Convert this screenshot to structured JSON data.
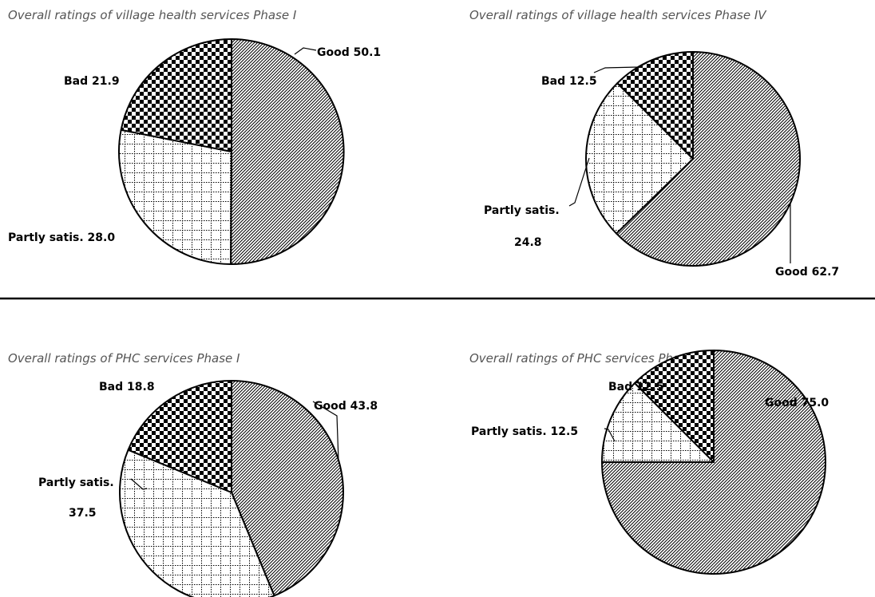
{
  "chart_data": [
    {
      "type": "pie",
      "title": "Overall ratings of village health services Phase I",
      "slices": [
        {
          "name": "Good",
          "value": 50.1,
          "pattern": "hatch",
          "labels": [
            "Good 50.1"
          ]
        },
        {
          "name": "Partly satis.",
          "value": 28.0,
          "pattern": "grid",
          "labels": [
            "Partly satis. 28.0"
          ]
        },
        {
          "name": "Bad",
          "value": 21.9,
          "pattern": "checker",
          "labels": [
            "Bad 21.9"
          ]
        }
      ]
    },
    {
      "type": "pie",
      "title": "Overall ratings of village health services Phase IV",
      "slices": [
        {
          "name": "Good",
          "value": 62.7,
          "pattern": "hatch",
          "labels": [
            "Good 62.7"
          ]
        },
        {
          "name": "Partly satis.",
          "value": 24.8,
          "pattern": "grid",
          "labels": [
            "Partly satis.",
            "24.8"
          ]
        },
        {
          "name": "Bad",
          "value": 12.5,
          "pattern": "checker",
          "labels": [
            "Bad 12.5"
          ]
        }
      ]
    },
    {
      "type": "pie",
      "title": "Overall ratings of PHC services Phase I",
      "slices": [
        {
          "name": "Good",
          "value": 43.8,
          "pattern": "hatch",
          "labels": [
            "Good 43.8"
          ]
        },
        {
          "name": "Partly satis.",
          "value": 37.5,
          "pattern": "grid",
          "labels": [
            "Partly satis.",
            "37.5"
          ]
        },
        {
          "name": "Bad",
          "value": 18.8,
          "pattern": "checker",
          "labels": [
            "Bad 18.8"
          ]
        }
      ]
    },
    {
      "type": "pie",
      "title": "Overall ratings of PHC services Phase IV",
      "slices": [
        {
          "name": "Good",
          "value": 75.0,
          "pattern": "hatch",
          "labels": [
            "Good 75.0"
          ]
        },
        {
          "name": "Partly satis.",
          "value": 12.5,
          "pattern": "grid",
          "labels": [
            "Partly satis. 12.5"
          ]
        },
        {
          "name": "Bad",
          "value": 12.5,
          "pattern": "checker",
          "labels": [
            "Bad 12.5"
          ]
        }
      ]
    }
  ]
}
